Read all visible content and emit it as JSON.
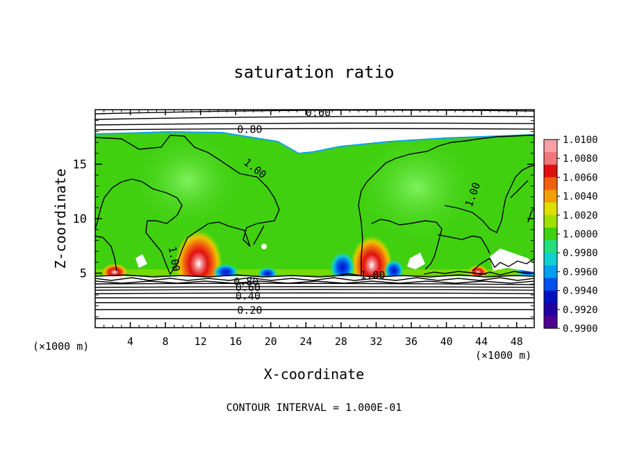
{
  "chart_data": {
    "type": "heatmap",
    "title": "saturation ratio",
    "xlabel": "X-coordinate",
    "ylabel": "Z-coordinate",
    "x_unit_label_left": "(×1000 m)",
    "x_unit_label_right": "(×1000 m)",
    "footer": "CONTOUR INTERVAL = 1.000E-01",
    "xlim": [
      0,
      50
    ],
    "ylim": [
      0,
      20
    ],
    "x_ticks": [
      4,
      8,
      12,
      16,
      20,
      24,
      28,
      32,
      36,
      40,
      44,
      48
    ],
    "y_ticks": [
      5,
      10,
      15
    ],
    "colorbar": {
      "labels": [
        "1.0100",
        "1.0080",
        "1.0060",
        "1.0040",
        "1.0020",
        "1.0000",
        "0.9980",
        "0.9960",
        "0.9940",
        "0.9920",
        "0.9900"
      ],
      "colors": [
        "#f8a0a8",
        "#f07878",
        "#e01010",
        "#f06010",
        "#f0a000",
        "#e0e000",
        "#a0e000",
        "#40d010",
        "#20e080",
        "#10d0d0",
        "#00a0f0",
        "#0050f0",
        "#0010c0",
        "#2000a0",
        "#500090"
      ]
    },
    "contour_labels": [
      {
        "text": "0.60",
        "x": 25.4,
        "z": 19.7
      },
      {
        "text": "0.80",
        "x": 17.6,
        "z": 18.2
      },
      {
        "text": "1.00",
        "x": 18.2,
        "z": 14.6
      },
      {
        "text": "1.00",
        "x": 43.0,
        "z": 12.2
      },
      {
        "text": "1.00",
        "x": 9.0,
        "z": 6.3
      },
      {
        "text": "1.00",
        "x": 31.6,
        "z": 4.8
      },
      {
        "text": "0.80",
        "x": 17.2,
        "z": 4.2
      },
      {
        "text": "0.60",
        "x": 17.4,
        "z": 3.7
      },
      {
        "text": "0.40",
        "x": 17.4,
        "z": 2.9
      },
      {
        "text": "0.20",
        "x": 17.6,
        "z": 1.6
      }
    ],
    "hotspots": [
      {
        "x": 11.8,
        "z": 5.8,
        "value": 1.007
      },
      {
        "x": 31.3,
        "z": 5.8,
        "value": 1.006
      },
      {
        "x": 28.2,
        "z": 5.2,
        "value": 0.993
      },
      {
        "x": 34.0,
        "z": 5.0,
        "value": 0.992
      },
      {
        "x": 14.5,
        "z": 5.0,
        "value": 0.995
      },
      {
        "x": 19.2,
        "z": 4.9,
        "value": 0.996
      }
    ]
  }
}
